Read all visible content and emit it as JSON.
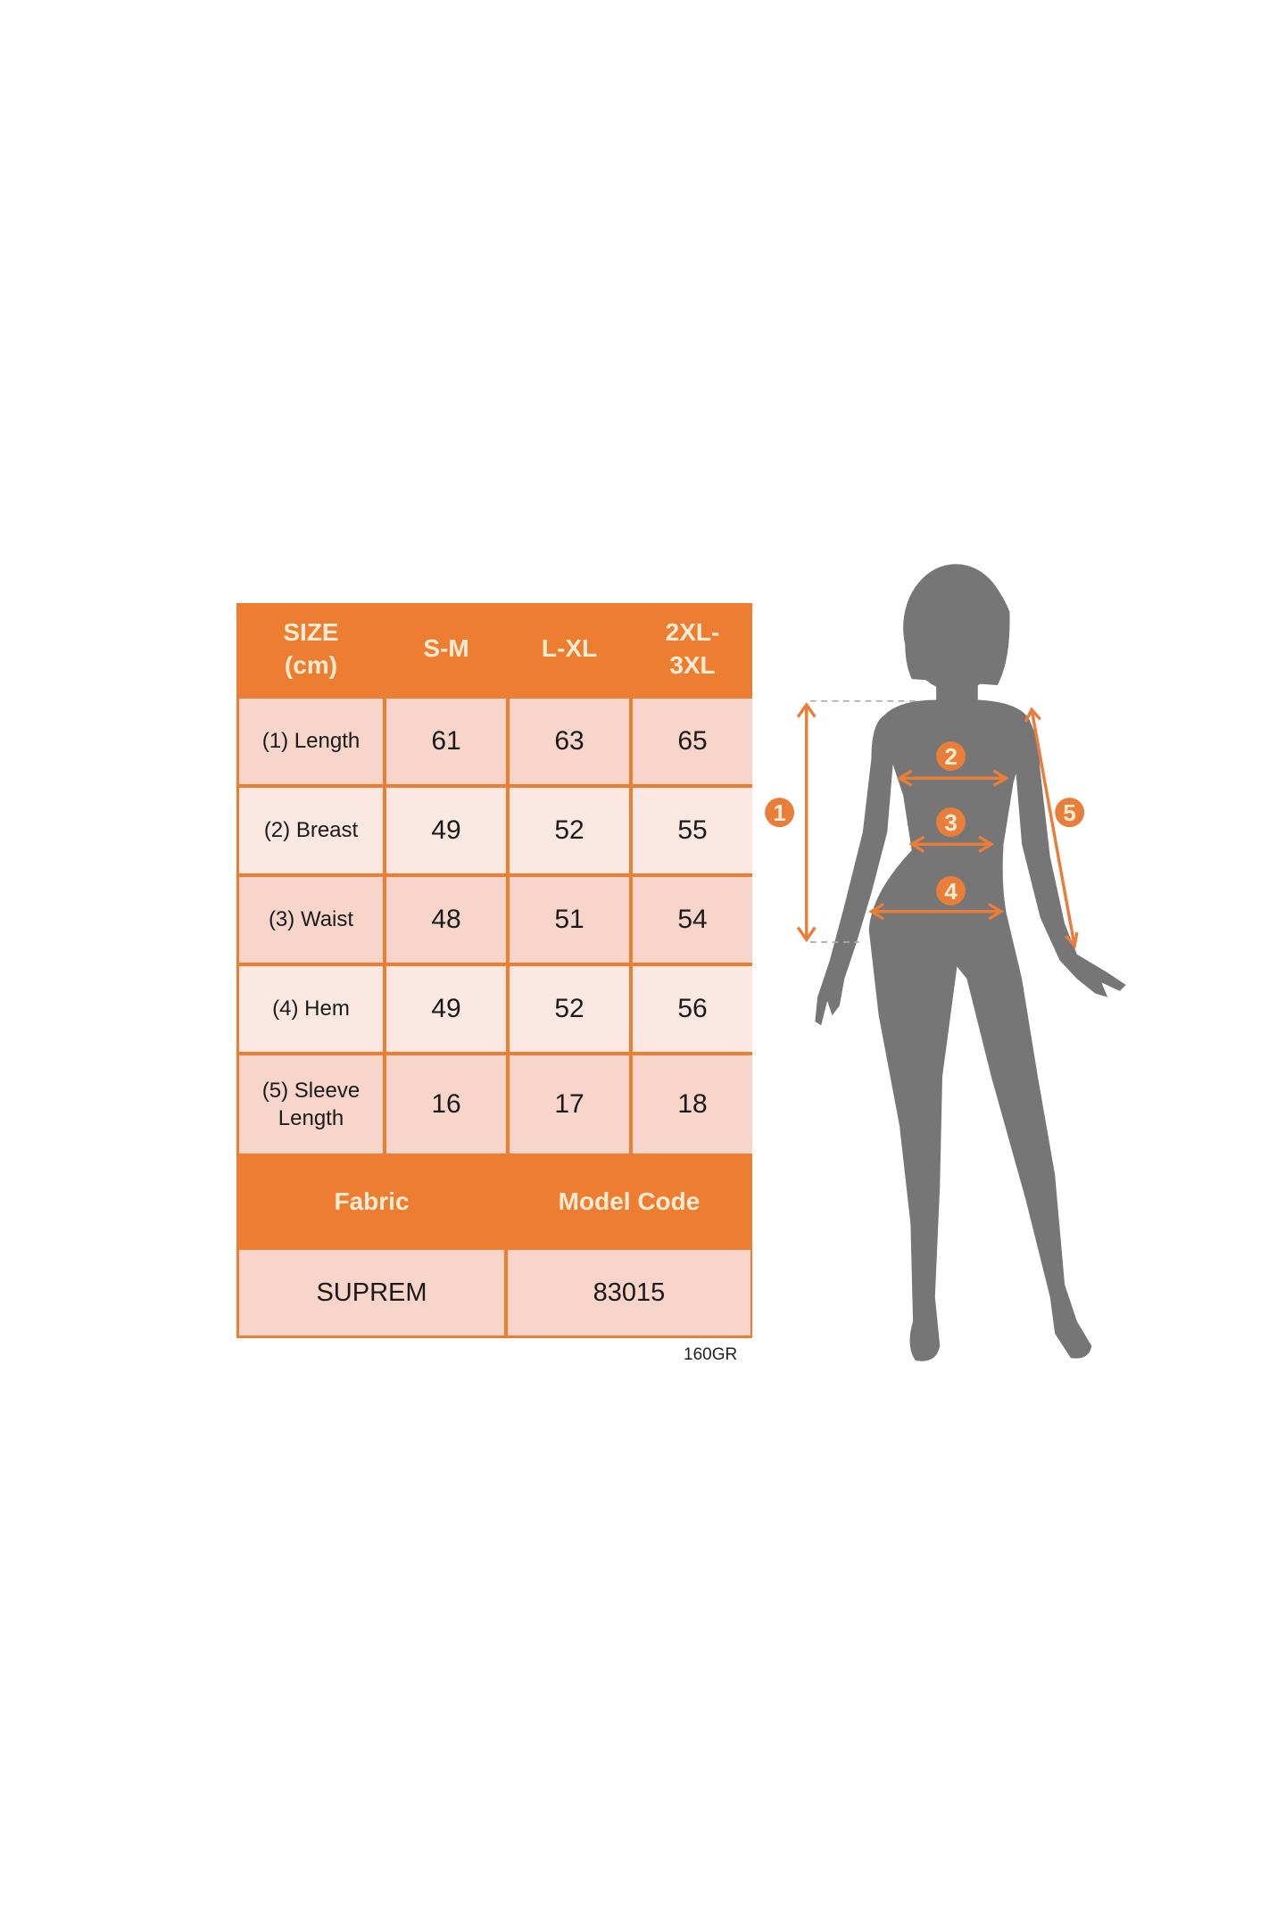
{
  "size_table": {
    "header": [
      "SIZE\n(cm)",
      "S-M",
      "L-XL",
      "2XL-\n3XL"
    ],
    "header_lines": {
      "size": [
        "SIZE",
        "(cm)"
      ],
      "last": [
        "2XL-",
        "3XL"
      ]
    },
    "rows": [
      {
        "label": "(1) Length",
        "values": [
          "61",
          "63",
          "65"
        ]
      },
      {
        "label": "(2) Breast",
        "values": [
          "49",
          "52",
          "55"
        ]
      },
      {
        "label": "(3) Waist",
        "values": [
          "48",
          "51",
          "54"
        ]
      },
      {
        "label": "(4) Hem",
        "values": [
          "49",
          "52",
          "56"
        ]
      },
      {
        "label_lines": [
          "(5) Sleeve",
          "Length"
        ],
        "values": [
          "16",
          "17",
          "18"
        ]
      }
    ]
  },
  "info_table": {
    "headers": [
      "Fabric",
      "Model Code"
    ],
    "values": [
      "SUPREM",
      "83015"
    ]
  },
  "note": "160GR",
  "figure": {
    "markers": [
      "1",
      "2",
      "3",
      "4",
      "5"
    ],
    "silhouette_color": "#767676",
    "accent_color": "#e97e3a"
  },
  "colors": {
    "header": "#ed7d31",
    "cell": "#f8d5ca",
    "cell_alt": "#fbe8e2"
  }
}
